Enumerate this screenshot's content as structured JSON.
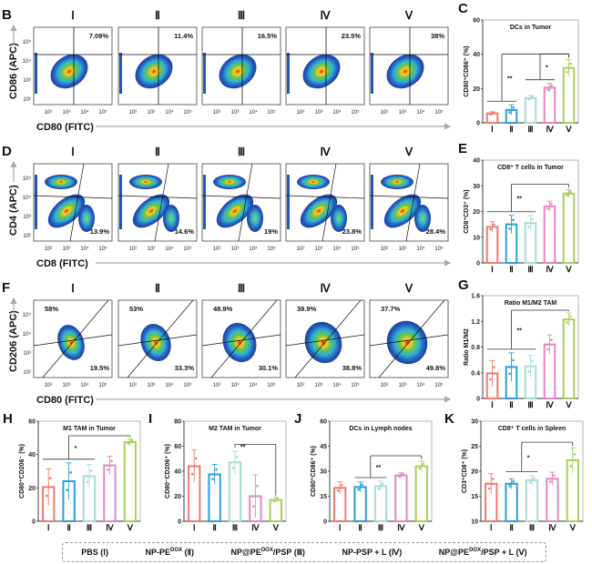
{
  "groups": [
    "I",
    "II",
    "III",
    "IV",
    "V"
  ],
  "group_roman": [
    "Ⅰ",
    "Ⅱ",
    "Ⅲ",
    "Ⅳ",
    "Ⅴ"
  ],
  "colors": [
    "#f07b6e",
    "#2a9fd8",
    "#a6dcd8",
    "#e386c2",
    "#a8d05a"
  ],
  "legend": [
    {
      "text": "PBS (Ⅰ)",
      "sup": "",
      "after": ""
    },
    {
      "text": "NP-PE",
      "sup": "DOX",
      "after": " (Ⅱ)"
    },
    {
      "text": "NP@PE",
      "sup": "DOX",
      "after": "/PSP (Ⅲ)"
    },
    {
      "text": "NP-PSP + L (Ⅳ)",
      "sup": "",
      "after": ""
    },
    {
      "text": "NP@PE",
      "sup": "DOX",
      "after": "/PSP + L (Ⅴ)"
    }
  ],
  "flow_rows": [
    {
      "letter": "B",
      "ylabel": "CD86 (APC)",
      "xlabel": "CD80 (FITC)",
      "gate": "quadrant",
      "pct_pos": "top-right",
      "values": [
        "7.09%",
        "11.4%",
        "16.5%",
        "23.5%",
        "38%"
      ],
      "yticks": [
        "10⁵",
        "10⁴",
        "10³",
        "10²"
      ],
      "xticks": [
        "10²",
        "10³",
        "10⁴",
        "10⁵"
      ]
    },
    {
      "letter": "D",
      "ylabel": "CD4 (APC)",
      "xlabel": "CD8 (FITC)",
      "gate": "tri",
      "pct_pos": "bottom-right",
      "values": [
        "13.9%",
        "14.6%",
        "19%",
        "23.8%",
        "28.4%"
      ],
      "yticks": [
        "10⁵",
        "10⁴",
        "10³",
        "10²"
      ],
      "xticks": [
        "10²",
        "10³",
        "10⁴",
        "10⁵"
      ]
    },
    {
      "letter": "F",
      "ylabel": "CD206 (APC)",
      "xlabel": "CD80 (FITC)",
      "gate": "cross",
      "pct_pos": "both",
      "values_top": [
        "58%",
        "53%",
        "48.9%",
        "39.9%",
        "37.7%"
      ],
      "values": [
        "19.5%",
        "33.3%",
        "30.1%",
        "38.8%",
        "49.8%"
      ],
      "yticks": [
        "10⁵",
        "10⁴",
        "10³",
        "10²"
      ],
      "xticks": [
        "10²",
        "10³",
        "10⁴",
        "10⁵"
      ]
    }
  ],
  "chart_data": [
    {
      "letter": "C",
      "type": "bar",
      "title": "DCs in Tumor",
      "ylabel": "CD80⁺CD86⁺ (%)",
      "categories": [
        "I",
        "II",
        "III",
        "IV",
        "V"
      ],
      "values": [
        5.5,
        7.5,
        14.5,
        20.5,
        32
      ],
      "errors": [
        1,
        3,
        1.5,
        2.5,
        5
      ],
      "ylim": [
        0,
        60
      ],
      "yticks": [
        0,
        20,
        40,
        60
      ],
      "sig": [
        {
          "from": [
            0,
            1
          ],
          "to": 4,
          "label": "**"
        },
        {
          "from": [
            2,
            3
          ],
          "to": 4,
          "label": "*"
        }
      ]
    },
    {
      "letter": "E",
      "type": "bar",
      "title": "CD8⁺ T cells in Tumor",
      "ylabel": "CD8⁺CD3⁺ (%)",
      "categories": [
        "I",
        "II",
        "III",
        "IV",
        "V"
      ],
      "values": [
        14,
        15,
        15.5,
        22,
        27
      ],
      "errors": [
        2,
        3.5,
        3,
        2,
        1.5
      ],
      "ylim": [
        0,
        40
      ],
      "yticks": [
        0,
        10,
        20,
        30,
        40
      ],
      "sig": [
        {
          "from": [
            0,
            2
          ],
          "to": 4,
          "label": "**"
        }
      ]
    },
    {
      "letter": "G",
      "type": "bar",
      "title": "Ratio M1/M2 TAM",
      "ylabel": "Ratio M1/M2",
      "categories": [
        "I",
        "II",
        "III",
        "IV",
        "V"
      ],
      "values": [
        0.39,
        0.49,
        0.5,
        0.84,
        1.23
      ],
      "errors": [
        0.2,
        0.22,
        0.17,
        0.15,
        0.1
      ],
      "ylim": [
        0,
        1.6
      ],
      "yticks": [
        0,
        0.4,
        0.8,
        1.2,
        1.6
      ],
      "sig": [
        {
          "from": [
            0,
            2
          ],
          "to": 4,
          "label": "**"
        }
      ]
    },
    {
      "letter": "H",
      "type": "bar",
      "title": "M1 TAM in Tumor",
      "ylabel": "CD80⁺CD206⁻ (%)",
      "categories": [
        "I",
        "II",
        "III",
        "IV",
        "V"
      ],
      "values": [
        20.5,
        24,
        27,
        33.5,
        47.5
      ],
      "errors": [
        11,
        11,
        7,
        5.5,
        2
      ],
      "ylim": [
        0,
        60
      ],
      "yticks": [
        0,
        20,
        40,
        60
      ],
      "sig": [
        {
          "from": [
            0,
            2
          ],
          "to": 4,
          "label": "*"
        }
      ]
    },
    {
      "letter": "I",
      "type": "bar",
      "title": "M2 TAM in Tumor",
      "ylabel": "CD80⁻CD206⁺ (%)",
      "categories": [
        "I",
        "II",
        "III",
        "IV",
        "V"
      ],
      "values": [
        44,
        37.5,
        47,
        20,
        17
      ],
      "errors": [
        13,
        8,
        9,
        17,
        2
      ],
      "ylim": [
        0,
        80
      ],
      "yticks": [
        0,
        20,
        40,
        60,
        80
      ],
      "sig": [
        {
          "from": [
            2,
            2
          ],
          "to": 4,
          "label": "**"
        }
      ]
    },
    {
      "letter": "J",
      "type": "bar",
      "title": "DCs in Lymph nodes",
      "ylabel": "CD80⁺CD86⁺ (%)",
      "categories": [
        "I",
        "II",
        "III",
        "IV",
        "V"
      ],
      "values": [
        20,
        20.5,
        21,
        27.5,
        33
      ],
      "errors": [
        3.5,
        3,
        3,
        1.5,
        3
      ],
      "ylim": [
        0,
        60
      ],
      "yticks": [
        0,
        15,
        30,
        45,
        60
      ],
      "sig": [
        {
          "from": [
            1,
            2
          ],
          "to": 4,
          "label": "**"
        }
      ]
    },
    {
      "letter": "K",
      "type": "bar",
      "title": "CD8⁺ T cells in Spleen",
      "ylabel": "CD3⁺CD8⁺ (%)",
      "categories": [
        "I",
        "II",
        "III",
        "IV",
        "V"
      ],
      "values": [
        17.5,
        17.5,
        18.2,
        18.5,
        22.2
      ],
      "errors": [
        2,
        1,
        1,
        1.3,
        2.5
      ],
      "ylim": [
        10,
        30
      ],
      "yticks": [
        10,
        15,
        20,
        25,
        30
      ],
      "sig": [
        {
          "from": [
            1,
            2
          ],
          "to": 4,
          "label": "*"
        }
      ]
    }
  ]
}
